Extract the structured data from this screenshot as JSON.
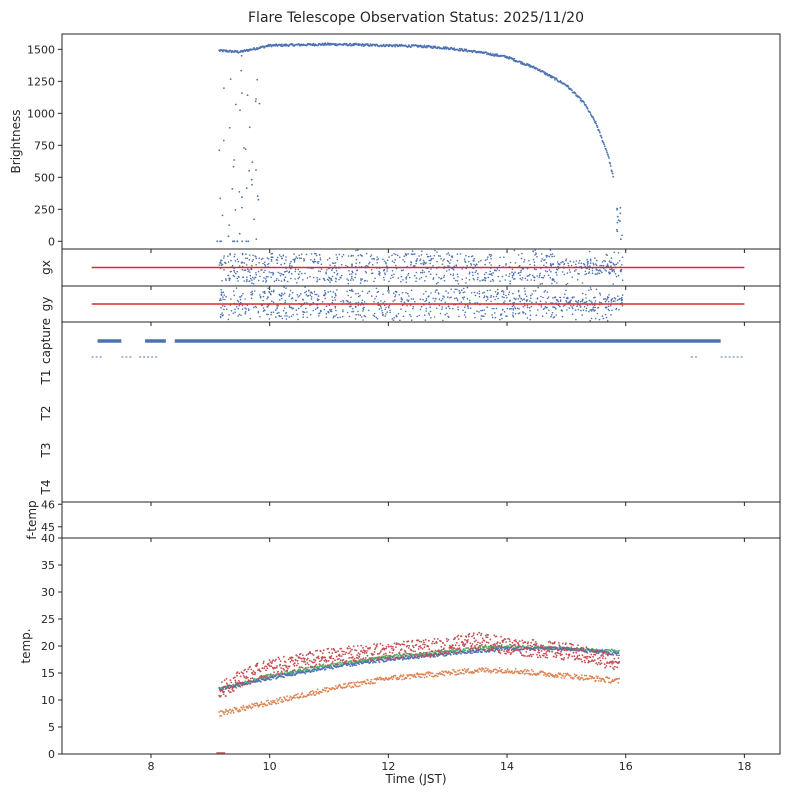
{
  "chart_data": {
    "type": "scatter",
    "title": "Flare Telescope Observation Status: 2025/11/20",
    "xlabel": "Time (JST)",
    "xlim": [
      6.5,
      18.6
    ],
    "xticks": [
      "8",
      "10",
      "12",
      "14",
      "16",
      "18"
    ],
    "colors": {
      "blue": "#4c72b0",
      "red": "#dd2a2a",
      "temp_red": "#c44e52",
      "orange": "#dd8452",
      "green": "#55a868"
    },
    "panels": [
      {
        "id": "brightness",
        "ylabel": "Brightness",
        "ylim": [
          -60,
          1620
        ],
        "yticks": [
          "0",
          "250",
          "500",
          "750",
          "1000",
          "1250",
          "1500"
        ],
        "profile": [
          [
            9.15,
            1490
          ],
          [
            9.5,
            1480
          ],
          [
            10.0,
            1530
          ],
          [
            11.0,
            1540
          ],
          [
            12.0,
            1530
          ],
          [
            12.5,
            1525
          ],
          [
            13.0,
            1510
          ],
          [
            13.5,
            1480
          ],
          [
            14.0,
            1440
          ],
          [
            14.5,
            1350
          ],
          [
            15.0,
            1220
          ],
          [
            15.3,
            1080
          ],
          [
            15.5,
            920
          ],
          [
            15.7,
            680
          ],
          [
            15.8,
            480
          ]
        ],
        "annotation": "Dense brightness samples from ~9.15 to 15.8 JST with sparse outliers near 9.2-9.8 and 15.85-15.95"
      },
      {
        "id": "gx",
        "ylabel": "gx",
        "reference_line": {
          "from": 7.0,
          "to": 18.0
        },
        "scatter_range": [
          9.15,
          15.95
        ]
      },
      {
        "id": "gy",
        "ylabel": "gy",
        "reference_line": {
          "from": 7.0,
          "to": 18.0
        },
        "scatter_range": [
          9.15,
          15.95
        ]
      },
      {
        "id": "status",
        "ylabels": [
          "capture",
          "T1",
          "T2",
          "T3",
          "T4"
        ],
        "capture_segments": [
          [
            7.1,
            7.5
          ],
          [
            7.9,
            8.25
          ],
          [
            8.4,
            17.6
          ]
        ],
        "t1_segments": [
          [
            7.0,
            7.2
          ],
          [
            7.5,
            7.7
          ],
          [
            7.8,
            8.1
          ],
          [
            17.1,
            17.2
          ],
          [
            17.6,
            18.0
          ]
        ]
      },
      {
        "id": "f-temp",
        "ylabel": "f-temp",
        "ylim": [
          44.5,
          46.1
        ],
        "yticks": [
          "45",
          "46"
        ]
      },
      {
        "id": "temp",
        "ylabel": "temp.",
        "ylim": [
          0,
          40
        ],
        "yticks": [
          "0",
          "5",
          "10",
          "15",
          "20",
          "25",
          "30",
          "35",
          "40"
        ],
        "series": [
          {
            "name": "temp_red",
            "x": [
              9.15,
              9.5,
              10,
              11,
              12,
              13,
              13.5,
              14,
              15,
              15.9
            ],
            "values": [
              11.5,
              14,
              16,
              18,
              19,
              20,
              21,
              20,
              19,
              17
            ]
          },
          {
            "name": "temp_green",
            "x": [
              9.15,
              10,
              11,
              12,
              13,
              13.5,
              14,
              15,
              15.9
            ],
            "values": [
              12,
              14.5,
              16.5,
              18,
              19,
              19.5,
              20,
              19.5,
              19
            ]
          },
          {
            "name": "temp_blue",
            "x": [
              9.15,
              10,
              11,
              12,
              13,
              13.5,
              14,
              15,
              15.9
            ],
            "values": [
              12,
              14,
              16,
              17.5,
              18.5,
              19,
              19.5,
              19.5,
              18.5
            ]
          },
          {
            "name": "temp_orange",
            "x": [
              9.15,
              10,
              11,
              12,
              13,
              13.5,
              14,
              15,
              15.9
            ],
            "values": [
              7.5,
              9.5,
              12,
              14,
              15,
              15.5,
              15.5,
              14.5,
              13.5
            ]
          }
        ]
      }
    ]
  }
}
